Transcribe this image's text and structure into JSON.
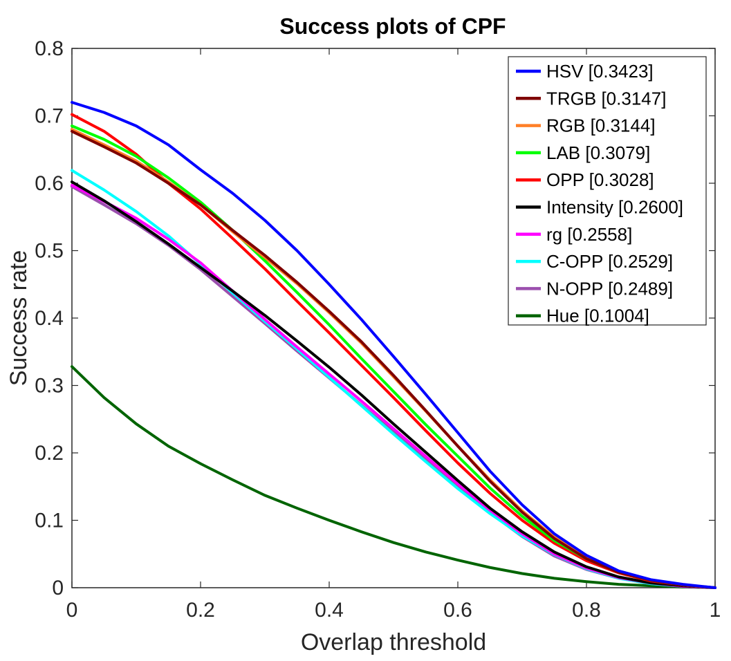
{
  "chart_data": {
    "type": "line",
    "title": "Success plots of CPF",
    "xlabel": "Overlap threshold",
    "ylabel": "Success rate",
    "xlim": [
      0,
      1
    ],
    "ylim": [
      0,
      0.8
    ],
    "xticks": [
      0,
      0.2,
      0.4,
      0.6,
      0.8,
      1
    ],
    "xtick_labels": [
      "0",
      "0.2",
      "0.4",
      "0.6",
      "0.8",
      "1"
    ],
    "yticks": [
      0,
      0.1,
      0.2,
      0.3,
      0.4,
      0.5,
      0.6,
      0.7,
      0.8
    ],
    "ytick_labels": [
      "0",
      "0.1",
      "0.2",
      "0.3",
      "0.4",
      "0.5",
      "0.6",
      "0.7",
      "0.8"
    ],
    "grid": false,
    "legend_position": "top-right",
    "x": [
      0,
      0.05,
      0.1,
      0.15,
      0.2,
      0.25,
      0.3,
      0.35,
      0.4,
      0.45,
      0.5,
      0.55,
      0.6,
      0.65,
      0.7,
      0.75,
      0.8,
      0.85,
      0.9,
      0.95,
      1.0
    ],
    "series": [
      {
        "name": "HSV [0.3423]",
        "color": "#0000ff",
        "values": [
          0.72,
          0.705,
          0.685,
          0.657,
          0.62,
          0.585,
          0.545,
          0.5,
          0.45,
          0.398,
          0.343,
          0.287,
          0.23,
          0.173,
          0.123,
          0.08,
          0.048,
          0.025,
          0.012,
          0.005,
          0.0
        ]
      },
      {
        "name": "TRGB [0.3147]",
        "color": "#7f0000",
        "values": [
          0.677,
          0.654,
          0.63,
          0.6,
          0.568,
          0.53,
          0.493,
          0.453,
          0.41,
          0.365,
          0.315,
          0.263,
          0.21,
          0.158,
          0.112,
          0.073,
          0.043,
          0.023,
          0.011,
          0.004,
          0.0
        ]
      },
      {
        "name": "RGB [0.3144]",
        "color": "#ff7f27",
        "values": [
          0.68,
          0.657,
          0.633,
          0.602,
          0.568,
          0.528,
          0.49,
          0.451,
          0.408,
          0.363,
          0.313,
          0.262,
          0.21,
          0.16,
          0.114,
          0.075,
          0.045,
          0.024,
          0.011,
          0.004,
          0.0
        ]
      },
      {
        "name": "LAB [0.3079]",
        "color": "#00ff00",
        "values": [
          0.685,
          0.665,
          0.64,
          0.608,
          0.572,
          0.53,
          0.485,
          0.438,
          0.39,
          0.34,
          0.291,
          0.242,
          0.195,
          0.148,
          0.106,
          0.07,
          0.043,
          0.023,
          0.011,
          0.004,
          0.0
        ]
      },
      {
        "name": "OPP [0.3028]",
        "color": "#ff0000",
        "values": [
          0.702,
          0.677,
          0.643,
          0.6,
          0.562,
          0.518,
          0.473,
          0.425,
          0.378,
          0.33,
          0.282,
          0.233,
          0.185,
          0.14,
          0.1,
          0.066,
          0.04,
          0.022,
          0.01,
          0.004,
          0.0
        ]
      },
      {
        "name": "Intensity [0.2600]",
        "color": "#000000",
        "values": [
          0.602,
          0.574,
          0.543,
          0.51,
          0.475,
          0.44,
          0.404,
          0.366,
          0.327,
          0.286,
          0.243,
          0.201,
          0.159,
          0.118,
          0.083,
          0.053,
          0.031,
          0.016,
          0.007,
          0.003,
          0.0
        ]
      },
      {
        "name": "rg [0.2558]",
        "color": "#ff00ff",
        "values": [
          0.597,
          0.573,
          0.548,
          0.517,
          0.482,
          0.44,
          0.398,
          0.357,
          0.317,
          0.277,
          0.236,
          0.195,
          0.154,
          0.115,
          0.08,
          0.05,
          0.029,
          0.015,
          0.007,
          0.002,
          0.0
        ]
      },
      {
        "name": "C-OPP [0.2529]",
        "color": "#00ffff",
        "values": [
          0.619,
          0.59,
          0.558,
          0.522,
          0.48,
          0.437,
          0.395,
          0.354,
          0.312,
          0.27,
          0.228,
          0.187,
          0.147,
          0.11,
          0.077,
          0.049,
          0.028,
          0.014,
          0.006,
          0.002,
          0.0
        ]
      },
      {
        "name": "N-OPP [0.2489]",
        "color": "#9b4fae",
        "values": [
          0.595,
          0.568,
          0.54,
          0.508,
          0.472,
          0.432,
          0.392,
          0.351,
          0.311,
          0.271,
          0.231,
          0.19,
          0.15,
          0.111,
          0.076,
          0.047,
          0.027,
          0.014,
          0.006,
          0.002,
          0.0
        ]
      },
      {
        "name": "Hue [0.1004]",
        "color": "#006400",
        "values": [
          0.328,
          0.282,
          0.243,
          0.21,
          0.184,
          0.16,
          0.137,
          0.118,
          0.1,
          0.083,
          0.067,
          0.053,
          0.041,
          0.03,
          0.021,
          0.014,
          0.009,
          0.005,
          0.003,
          0.001,
          0.0
        ]
      }
    ]
  }
}
